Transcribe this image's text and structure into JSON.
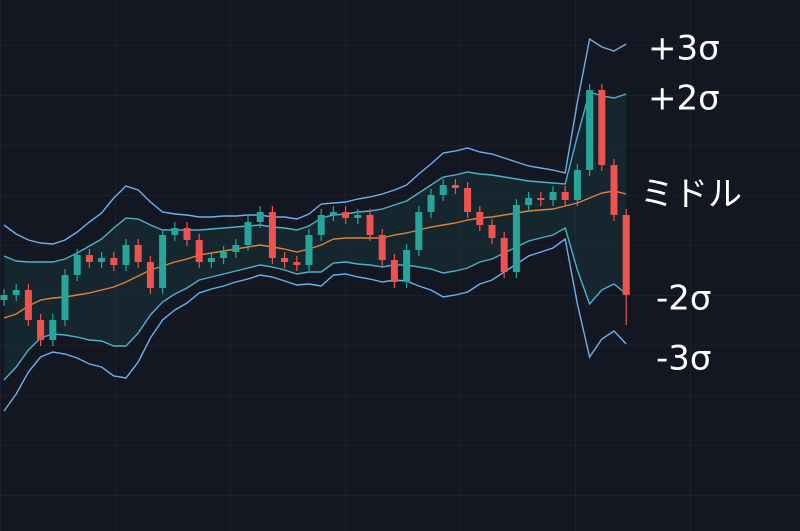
{
  "chart_data": {
    "type": "candlestick",
    "ylim": [
      0,
      531
    ],
    "grid": true,
    "up_color": "#26a69a",
    "down_color": "#ef5350",
    "candles": {
      "open": [
        231,
        236,
        241,
        211,
        191,
        211,
        256,
        276,
        269,
        273,
        266,
        286,
        269,
        243,
        296,
        303,
        291,
        269,
        273,
        279,
        286,
        309,
        319,
        273,
        269,
        266,
        296,
        316,
        319,
        313,
        316,
        296,
        271,
        249,
        281,
        319,
        336,
        346,
        343,
        319,
        306,
        293,
        259,
        326,
        333,
        331,
        339,
        331,
        361,
        441,
        366,
        316
      ],
      "high": [
        242,
        247,
        247,
        217,
        217,
        262,
        282,
        282,
        279,
        279,
        292,
        292,
        275,
        302,
        309,
        309,
        297,
        279,
        285,
        292,
        315,
        325,
        325,
        279,
        275,
        302,
        322,
        325,
        325,
        322,
        322,
        302,
        277,
        287,
        325,
        342,
        352,
        352,
        349,
        325,
        312,
        299,
        332,
        339,
        339,
        345,
        345,
        367,
        447,
        447,
        372,
        322
      ],
      "low": [
        225,
        230,
        205,
        185,
        185,
        205,
        250,
        263,
        263,
        260,
        260,
        263,
        237,
        237,
        290,
        285,
        263,
        263,
        267,
        273,
        280,
        303,
        267,
        263,
        260,
        260,
        290,
        310,
        307,
        307,
        290,
        265,
        243,
        243,
        275,
        313,
        330,
        337,
        313,
        300,
        287,
        253,
        253,
        320,
        325,
        325,
        325,
        325,
        355,
        360,
        310,
        206
      ],
      "close": [
        236,
        241,
        211,
        191,
        211,
        256,
        276,
        269,
        273,
        266,
        286,
        269,
        243,
        296,
        303,
        291,
        269,
        273,
        279,
        286,
        309,
        319,
        273,
        269,
        266,
        296,
        316,
        319,
        313,
        316,
        296,
        271,
        249,
        281,
        319,
        336,
        346,
        343,
        319,
        306,
        293,
        259,
        326,
        333,
        331,
        339,
        331,
        361,
        441,
        366,
        316,
        236
      ]
    },
    "series": [
      {
        "name": "+3σ",
        "color": "#6fb0ea",
        "values": [
          306,
          297,
          291,
          288,
          287,
          291,
          299,
          309,
          318,
          333,
          345,
          341,
          329,
          319,
          317,
          316,
          314,
          314,
          315,
          315,
          316,
          316,
          314,
          314,
          312,
          317,
          327,
          328,
          329,
          332,
          334,
          337,
          341,
          346,
          357,
          367,
          378,
          380,
          383,
          379,
          377,
          373,
          369,
          365,
          363,
          361,
          358,
          429,
          492,
          484,
          480,
          487
        ]
      },
      {
        "name": "+2σ",
        "color": "#4fb0cc",
        "values": [
          275,
          270,
          269,
          269,
          269,
          272,
          278,
          285,
          292,
          303,
          313,
          312,
          306,
          301,
          301,
          301,
          301,
          302,
          303,
          304,
          305,
          306,
          304,
          303,
          301,
          305,
          313,
          316,
          317,
          319,
          320,
          322,
          326,
          330,
          338,
          346,
          354,
          356,
          359,
          357,
          356,
          354,
          352,
          350,
          349,
          348,
          347,
          395,
          439,
          435,
          433,
          437
        ]
      },
      {
        "name": "ミドル",
        "color": "#e0823a",
        "values": [
          213,
          217,
          225,
          231,
          233,
          234,
          236,
          238,
          241,
          244,
          249,
          255,
          261,
          265,
          269,
          272,
          276,
          278,
          280,
          282,
          284,
          286,
          284,
          282,
          279,
          282,
          286,
          292,
          293,
          293,
          293,
          293,
          296,
          298,
          301,
          304,
          306,
          308,
          311,
          313,
          314,
          316,
          318,
          320,
          321,
          322,
          325,
          328,
          333,
          338,
          340,
          337
        ]
      },
      {
        "name": "-2σ",
        "color": "#4fb0cc",
        "values": [
          151,
          164,
          181,
          193,
          197,
          196,
          194,
          191,
          190,
          185,
          185,
          198,
          216,
          229,
          237,
          243,
          251,
          254,
          257,
          260,
          263,
          266,
          264,
          261,
          257,
          259,
          259,
          268,
          269,
          267,
          266,
          264,
          266,
          266,
          264,
          262,
          258,
          260,
          263,
          269,
          272,
          278,
          284,
          290,
          293,
          296,
          303,
          261,
          227,
          241,
          247,
          237
        ]
      },
      {
        "name": "-3σ",
        "color": "#6fb0ea",
        "values": [
          120,
          137,
          159,
          174,
          179,
          177,
          173,
          167,
          164,
          155,
          153,
          169,
          193,
          211,
          221,
          228,
          238,
          242,
          245,
          249,
          252,
          256,
          254,
          250,
          246,
          247,
          245,
          256,
          257,
          254,
          252,
          249,
          251,
          250,
          245,
          241,
          234,
          236,
          239,
          247,
          251,
          259,
          267,
          275,
          279,
          283,
          292,
          227,
          174,
          192,
          200,
          187
        ]
      }
    ]
  }
}
